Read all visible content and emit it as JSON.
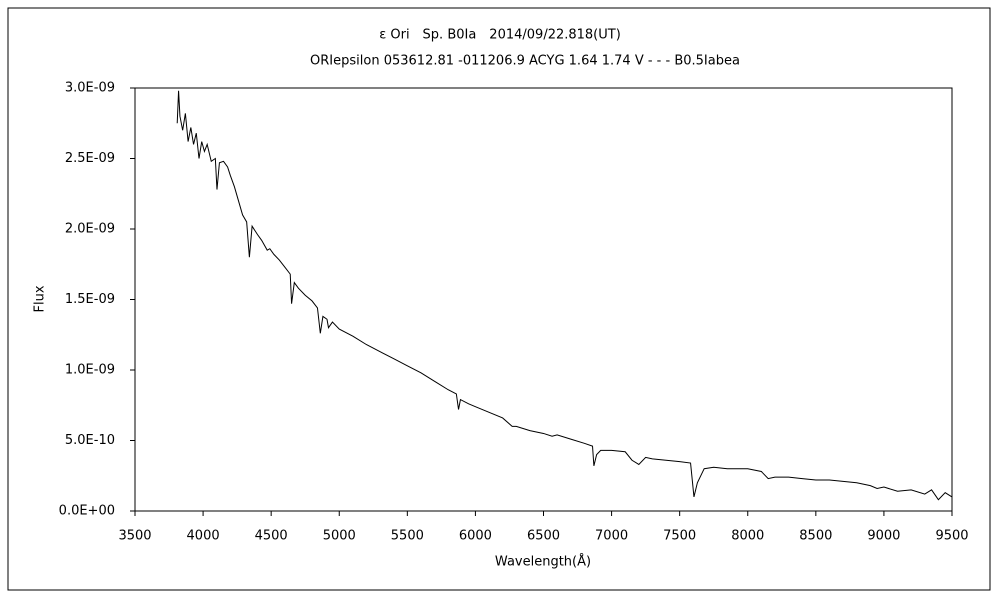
{
  "chart_data": {
    "type": "line",
    "title": "ε Ori　Sp. B0Ia　2014/09/22.818(UT)",
    "subtitle": "ORIepsilon 053612.81 -011206.9 ACYG 1.64 1.74 V - - - B0.5Iabea",
    "x_label": "Wavelength(Å)",
    "y_label": "Flux",
    "color": "#000000",
    "x": [
      3810,
      3820,
      3830,
      3850,
      3870,
      3890,
      3910,
      3930,
      3950,
      3970,
      3990,
      4010,
      4030,
      4060,
      4090,
      4102,
      4120,
      4150,
      4180,
      4200,
      4230,
      4260,
      4290,
      4320,
      4340,
      4360,
      4400,
      4430,
      4471,
      4490,
      4520,
      4560,
      4600,
      4640,
      4650,
      4670,
      4700,
      4750,
      4800,
      4840,
      4861,
      4880,
      4910,
      4921,
      4950,
      5000,
      5100,
      5200,
      5300,
      5400,
      5500,
      5600,
      5700,
      5800,
      5860,
      5876,
      5890,
      5950,
      6000,
      6100,
      6200,
      6270,
      6300,
      6400,
      6500,
      6563,
      6600,
      6700,
      6800,
      6860,
      6870,
      6890,
      6920,
      7000,
      7100,
      7150,
      7200,
      7250,
      7300,
      7400,
      7500,
      7580,
      7605,
      7630,
      7680,
      7750,
      7850,
      8000,
      8100,
      8150,
      8200,
      8300,
      8400,
      8500,
      8600,
      8700,
      8800,
      8900,
      8950,
      9000,
      9100,
      9200,
      9300,
      9350,
      9400,
      9450,
      9500
    ],
    "values": [
      2.75e-09,
      2.98e-09,
      2.8e-09,
      2.7e-09,
      2.82e-09,
      2.62e-09,
      2.72e-09,
      2.6e-09,
      2.68e-09,
      2.5e-09,
      2.62e-09,
      2.55e-09,
      2.6e-09,
      2.48e-09,
      2.5e-09,
      2.28e-09,
      2.47e-09,
      2.48e-09,
      2.44e-09,
      2.38e-09,
      2.3e-09,
      2.2e-09,
      2.1e-09,
      2.05e-09,
      1.8e-09,
      2.02e-09,
      1.96e-09,
      1.92e-09,
      1.85e-09,
      1.86e-09,
      1.82e-09,
      1.78e-09,
      1.73e-09,
      1.68e-09,
      1.47e-09,
      1.62e-09,
      1.58e-09,
      1.53e-09,
      1.49e-09,
      1.44e-09,
      1.26e-09,
      1.38e-09,
      1.36e-09,
      1.3e-09,
      1.34e-09,
      1.29e-09,
      1.24e-09,
      1.18e-09,
      1.13e-09,
      1.08e-09,
      1.03e-09,
      9.8e-10,
      9.2e-10,
      8.6e-10,
      8.3e-10,
      7.2e-10,
      7.9e-10,
      7.6e-10,
      7.4e-10,
      7e-10,
      6.6e-10,
      6e-10,
      6e-10,
      5.7e-10,
      5.5e-10,
      5.3e-10,
      5.4e-10,
      5.1e-10,
      4.8e-10,
      4.6e-10,
      3.2e-10,
      4e-10,
      4.3e-10,
      4.3e-10,
      4.2e-10,
      3.6e-10,
      3.3e-10,
      3.8e-10,
      3.7e-10,
      3.6e-10,
      3.5e-10,
      3.4e-10,
      1e-10,
      2e-10,
      3e-10,
      3.1e-10,
      3e-10,
      3e-10,
      2.8e-10,
      2.3e-10,
      2.4e-10,
      2.4e-10,
      2.3e-10,
      2.2e-10,
      2.2e-10,
      2.1e-10,
      2e-10,
      1.8e-10,
      1.6e-10,
      1.7e-10,
      1.4e-10,
      1.5e-10,
      1.2e-10,
      1.5e-10,
      8e-11,
      1.3e-10,
      1e-10
    ],
    "xlim": [
      3500,
      9500
    ],
    "xticks": [
      3500,
      4000,
      4500,
      5000,
      5500,
      6000,
      6500,
      7000,
      7500,
      8000,
      8500,
      9000,
      9500
    ],
    "ylim": [
      0,
      3e-09
    ],
    "yticks": [
      {
        "value": 0,
        "label": "0.0E+00"
      },
      {
        "value": 5e-10,
        "label": "5.0E-10"
      },
      {
        "value": 1e-09,
        "label": "1.0E-09"
      },
      {
        "value": 1.5e-09,
        "label": "1.5E-09"
      },
      {
        "value": 2e-09,
        "label": "2.0E-09"
      },
      {
        "value": 2.5e-09,
        "label": "2.5E-09"
      },
      {
        "value": 3e-09,
        "label": "3.0E-09"
      }
    ],
    "grid": false
  }
}
